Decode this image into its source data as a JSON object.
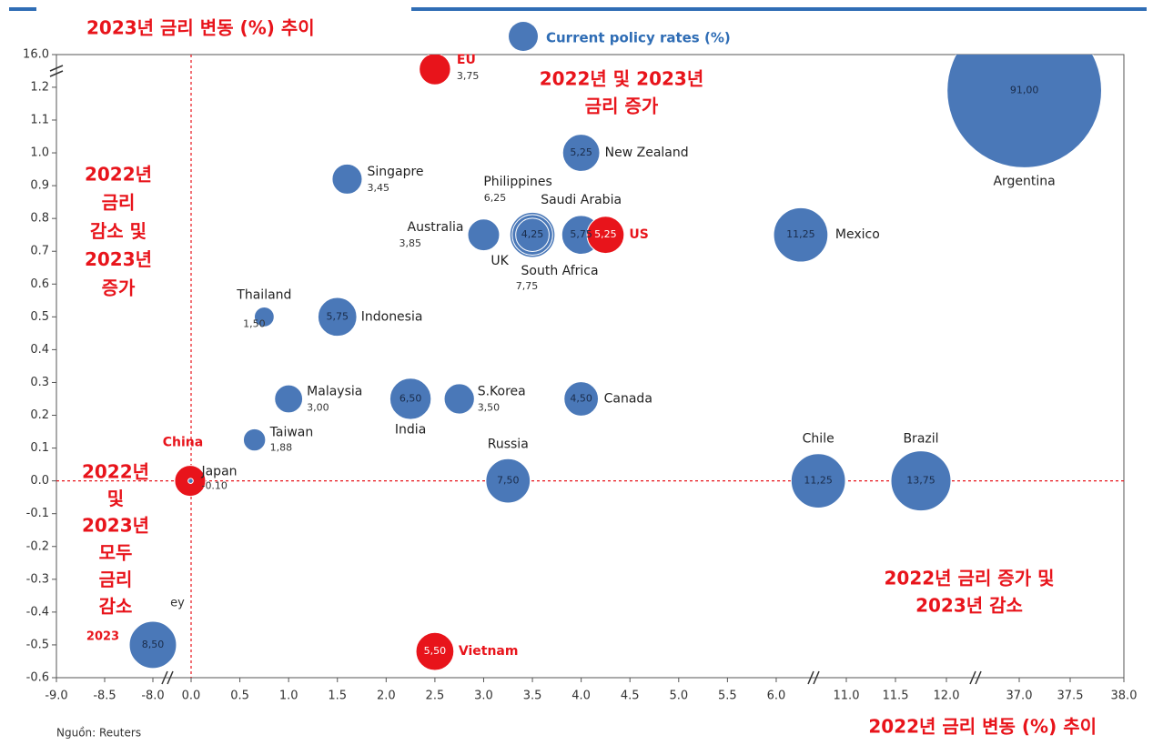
{
  "chart_data": {
    "type": "bubble",
    "y_title": "2023년 금리 변동 (%) 추이",
    "x_title": "2022년 금리 변동 (%) 추이",
    "legend": "Current policy rates (%)",
    "legend_color": "#4a78b8",
    "source": "Nguồn: Reuters",
    "quadrant_labels": [
      [
        "2022년 및 2023년",
        "금리 증가"
      ],
      [
        "2022년",
        "금리",
        "감소 및",
        "2023년",
        "증가"
      ],
      [
        "2022년",
        "및",
        "2023년",
        "모두",
        "금리",
        "감소"
      ],
      [
        "2022년 금리 증가 및",
        "2023년 감소"
      ]
    ],
    "fragments": [
      "ey",
      "2023"
    ],
    "labels": [
      "Argentina",
      "EU",
      "New Zealand",
      "Singapre",
      "Australia",
      "South Africa",
      "Philippines",
      "UK",
      "Saudi Arabia",
      "US",
      "Mexico",
      "Indonesia",
      "Thailand",
      "Malaysia",
      "India",
      "S.Korea",
      "Canada",
      "Taiwan",
      "Russia",
      "Chile",
      "Brazil",
      "China",
      "Japan",
      null,
      "Vietnam"
    ],
    "x": [
      37.05,
      2.5,
      4.0,
      1.6,
      3.0,
      3.5,
      3.5,
      3.5,
      4.0,
      4.25,
      7.75,
      1.5,
      0.75,
      1.0,
      2.25,
      2.75,
      4.0,
      0.65,
      3.25,
      9.0,
      11.75,
      -0.2,
      -0.1,
      -8.0,
      2.5
    ],
    "values": [
      1.19,
      9.4,
      1.0,
      0.92,
      0.75,
      0.75,
      0.75,
      0.75,
      0.75,
      0.75,
      0.75,
      0.5,
      0.5,
      0.25,
      0.25,
      0.25,
      0.25,
      0.125,
      0,
      0,
      0,
      0,
      0,
      -0.5,
      -0.52
    ],
    "sizes": [
      91,
      3.75,
      5.25,
      3.45,
      3.85,
      7.75,
      6.25,
      4.25,
      5.75,
      5.25,
      11.25,
      5.75,
      1.5,
      3.0,
      6.5,
      3.5,
      4.5,
      1.88,
      7.5,
      11.25,
      13.75,
      3.65,
      -0.1,
      8.5,
      5.5
    ],
    "size_labels": [
      "91,00",
      "3,75",
      "5,25",
      "3,45",
      "3,85",
      "7,75",
      "6,25",
      "4,25",
      "5,75",
      "5,25",
      "11,25",
      "5,75",
      "1,50",
      "3,00",
      "6,50",
      "3,50",
      "4,50",
      "1,88",
      "7,50",
      "11,25",
      "13,75",
      null,
      "-0.10",
      "8,50",
      "5,50"
    ],
    "colors": [
      "#4a78b8",
      "#e8141b",
      "#4a78b8",
      "#4a78b8",
      "#4a78b8",
      "#4a78b8",
      "#4a78b8",
      "#4a78b8",
      "#4a78b8",
      "#e8141b",
      "#4a78b8",
      "#4a78b8",
      "#4a78b8",
      "#4a78b8",
      "#4a78b8",
      "#4a78b8",
      "#4a78b8",
      "#4a78b8",
      "#4a78b8",
      "#4a78b8",
      "#4a78b8",
      "#e8141b",
      "#4a78b8",
      "#4a78b8",
      "#e8141b"
    ],
    "reference_color": "#e8141b",
    "hlines": [
      0
    ],
    "vlines": [
      0
    ],
    "xticks": [
      {
        "value": -9,
        "label": "-9.0"
      },
      -8.5,
      {
        "value": -8,
        "label": "-8.0"
      },
      {
        "value": 0,
        "label": "0.0"
      },
      0.5,
      {
        "value": 1,
        "label": "1.0"
      },
      1.5,
      {
        "value": 2,
        "label": "2.0"
      },
      2.5,
      {
        "value": 3,
        "label": "3.0"
      },
      3.5,
      {
        "value": 4,
        "label": "4.0"
      },
      4.5,
      {
        "value": 5,
        "label": "5.0"
      },
      5.5,
      {
        "value": 6,
        "label": "6.0"
      },
      {
        "value": 11,
        "label": "11.0"
      },
      11.5,
      {
        "value": 12,
        "label": "12.0"
      },
      {
        "value": 37,
        "label": "37.0"
      },
      37.5,
      {
        "value": 38,
        "label": "38.0"
      }
    ],
    "yticks": [
      -0.6,
      -0.5,
      -0.4,
      -0.3,
      -0.2,
      -0.1,
      {
        "value": 0,
        "label": "0.0"
      },
      0.1,
      0.2,
      0.3,
      0.4,
      0.5,
      0.6,
      0.7,
      0.8,
      0.9,
      {
        "value": 1,
        "label": "1.0"
      },
      1.1,
      1.2,
      {
        "value": 16,
        "label": "16.0"
      }
    ]
  }
}
